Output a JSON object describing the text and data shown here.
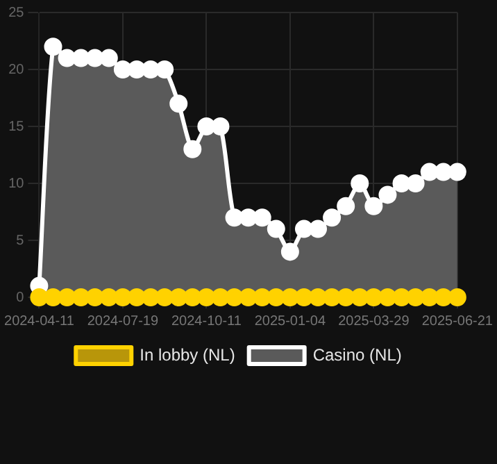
{
  "chart_data": {
    "type": "area",
    "categories": [
      "2024-04-11",
      null,
      null,
      null,
      null,
      null,
      "2024-07-19",
      null,
      null,
      null,
      null,
      null,
      "2024-10-11",
      null,
      null,
      null,
      null,
      null,
      "2025-01-04",
      null,
      null,
      null,
      null,
      null,
      "2025-03-29",
      null,
      null,
      null,
      null,
      null,
      "2025-06-21"
    ],
    "series": [
      {
        "name": "In lobby (NL)",
        "type": "line",
        "color": "#ffd200",
        "values": [
          0,
          0,
          0,
          0,
          0,
          0,
          0,
          0,
          0,
          0,
          0,
          0,
          0,
          0,
          0,
          0,
          0,
          0,
          0,
          0,
          0,
          0,
          0,
          0,
          0,
          0,
          0,
          0,
          0,
          0,
          0
        ]
      },
      {
        "name": "Casino (NL)",
        "color": "#ffffff",
        "values": [
          1,
          22,
          21,
          21,
          21,
          21,
          20,
          20,
          20,
          20,
          17,
          13,
          15,
          15,
          7,
          7,
          7,
          6,
          4,
          6,
          6,
          7,
          8,
          10,
          8,
          9,
          10,
          10,
          11,
          11,
          11
        ]
      }
    ],
    "ylim": [
      0,
      25
    ],
    "yticks": [
      0,
      5,
      10,
      15,
      20,
      25
    ],
    "grid": true,
    "legend": "bottom",
    "marker": "circle"
  }
}
